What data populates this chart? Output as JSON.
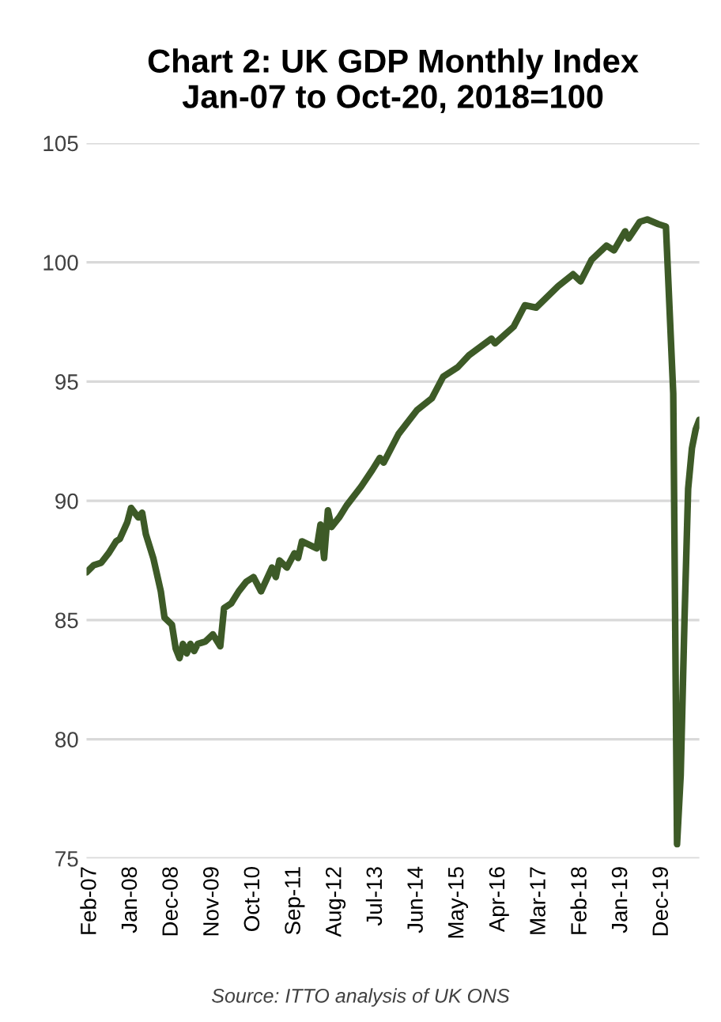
{
  "chart_data": {
    "type": "line",
    "title": "Chart 2: UK GDP Monthly Index\nJan-07 to Oct-20, 2018=100",
    "x": [
      "2007-01",
      "2007-03",
      "2007-05",
      "2007-07",
      "2007-09",
      "2007-10",
      "2007-12",
      "2008-01",
      "2008-03",
      "2008-04",
      "2008-05",
      "2008-07",
      "2008-09",
      "2008-10",
      "2008-12",
      "2009-01",
      "2009-02",
      "2009-03",
      "2009-04",
      "2009-05",
      "2009-06",
      "2009-07",
      "2009-09",
      "2009-11",
      "2010-01",
      "2010-02",
      "2010-04",
      "2010-06",
      "2010-08",
      "2010-10",
      "2010-12",
      "2011-03",
      "2011-04",
      "2011-05",
      "2011-07",
      "2011-09",
      "2011-10",
      "2011-11",
      "2012-03",
      "2012-04",
      "2012-05",
      "2012-06",
      "2012-07",
      "2012-09",
      "2012-11",
      "2013-03",
      "2013-06",
      "2013-08",
      "2013-09",
      "2014-01",
      "2014-06",
      "2014-10",
      "2015-01",
      "2015-05",
      "2015-08",
      "2016-02",
      "2016-03",
      "2016-08",
      "2016-11",
      "2017-02",
      "2017-08",
      "2017-12",
      "2018-02",
      "2018-05",
      "2018-09",
      "2018-11",
      "2019-02",
      "2019-03",
      "2019-06",
      "2019-08",
      "2019-11",
      "2020-01",
      "2020-03",
      "2020-04",
      "2020-05",
      "2020-06",
      "2020-07",
      "2020-08",
      "2020-09",
      "2020-10"
    ],
    "series": [
      {
        "color": "#3d5a27",
        "values": [
          87.0,
          87.3,
          87.4,
          87.8,
          88.3,
          88.4,
          89.1,
          89.7,
          89.3,
          89.5,
          88.6,
          87.6,
          86.2,
          85.1,
          84.8,
          83.8,
          83.4,
          84.0,
          83.6,
          84.0,
          83.7,
          84.0,
          84.1,
          84.4,
          83.9,
          85.5,
          85.7,
          86.2,
          86.6,
          86.8,
          86.2,
          87.2,
          86.8,
          87.5,
          87.2,
          87.8,
          87.6,
          88.3,
          88.0,
          89.0,
          87.6,
          89.6,
          88.9,
          89.3,
          89.8,
          90.6,
          91.3,
          91.8,
          91.6,
          92.8,
          93.8,
          94.3,
          95.2,
          95.6,
          96.1,
          96.8,
          96.6,
          97.3,
          98.2,
          98.1,
          99.0,
          99.5,
          99.2,
          100.1,
          100.7,
          100.5,
          101.3,
          101.0,
          101.7,
          101.8,
          101.6,
          101.5,
          94.5,
          75.6,
          78.5,
          85.0,
          90.5,
          92.2,
          93.0,
          93.4
        ]
      }
    ],
    "xlim": [
      "2007-01",
      "2020-10"
    ],
    "xticks": [
      {
        "value": "2007-02",
        "label": "Feb-07"
      },
      {
        "value": "2008-01",
        "label": "Jan-08"
      },
      {
        "value": "2008-12",
        "label": "Dec-08"
      },
      {
        "value": "2009-11",
        "label": "Nov-09"
      },
      {
        "value": "2010-10",
        "label": "Oct-10"
      },
      {
        "value": "2011-09",
        "label": "Sep-11"
      },
      {
        "value": "2012-08",
        "label": "Aug-12"
      },
      {
        "value": "2013-07",
        "label": "Jul-13"
      },
      {
        "value": "2014-06",
        "label": "Jun-14"
      },
      {
        "value": "2015-05",
        "label": "May-15"
      },
      {
        "value": "2016-04",
        "label": "Apr-16"
      },
      {
        "value": "2017-03",
        "label": "Mar-17"
      },
      {
        "value": "2018-02",
        "label": "Feb-18"
      },
      {
        "value": "2019-01",
        "label": "Jan-19"
      },
      {
        "value": "2019-12",
        "label": "Dec-19"
      }
    ],
    "ylim": [
      75,
      105
    ],
    "yticks": [
      75,
      80,
      85,
      90,
      95,
      100,
      105
    ],
    "grid": "y",
    "annotations": [
      "Source: ITTO analysis of UK ONS"
    ]
  }
}
